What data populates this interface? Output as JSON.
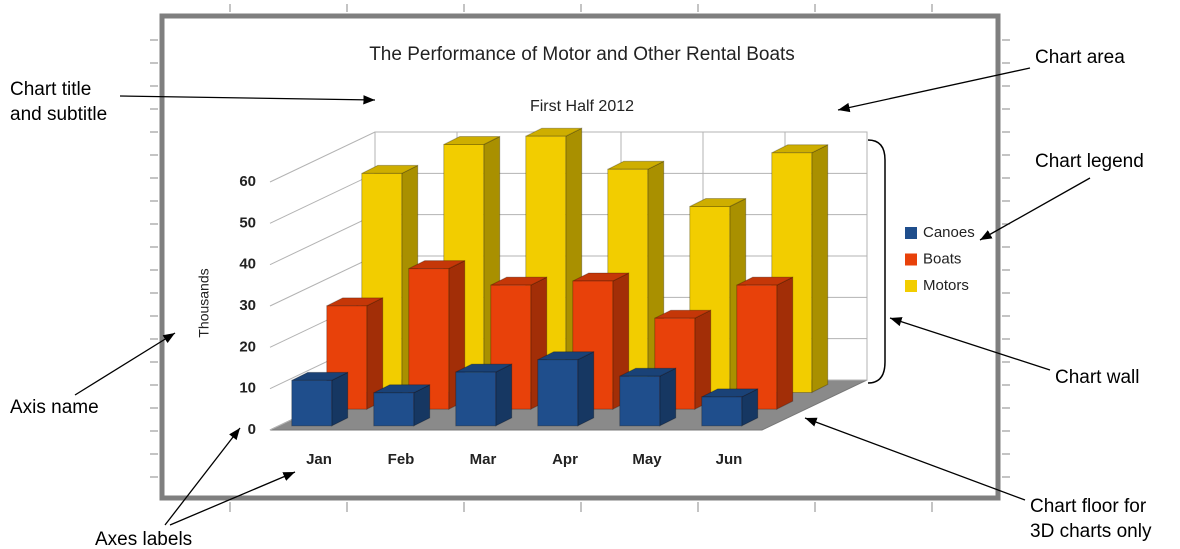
{
  "chart_data": {
    "type": "bar3d",
    "title": "The Performance of Motor and Other Rental Boats",
    "subtitle": "First Half 2012",
    "y_label": "Thousands",
    "categories": [
      "Jan",
      "Feb",
      "Mar",
      "Apr",
      "May",
      "Jun"
    ],
    "series": [
      {
        "name": "Canoes",
        "color": "#1f4e8c",
        "values": [
          11,
          8,
          13,
          16,
          12,
          7
        ]
      },
      {
        "name": "Boats",
        "color": "#e8410a",
        "values": [
          25,
          34,
          30,
          31,
          22,
          30
        ]
      },
      {
        "name": "Motors",
        "color": "#f2cd00",
        "values": [
          53,
          60,
          62,
          54,
          45,
          58
        ]
      }
    ],
    "ylim": [
      0,
      60
    ],
    "yticks": [
      0,
      10,
      20,
      30,
      40,
      50,
      60
    ],
    "grid": true,
    "legend": "right",
    "annotations": [
      {
        "lines": [
          "Chart title",
          "and subtitle"
        ]
      },
      {
        "lines": [
          "Chart area"
        ]
      },
      {
        "lines": [
          "Chart legend"
        ]
      },
      {
        "lines": [
          "Chart wall"
        ]
      },
      {
        "lines": [
          "Axis name"
        ]
      },
      {
        "lines": [
          "Axes labels"
        ]
      },
      {
        "lines": [
          "Chart floor for",
          "3D charts only"
        ]
      }
    ]
  }
}
